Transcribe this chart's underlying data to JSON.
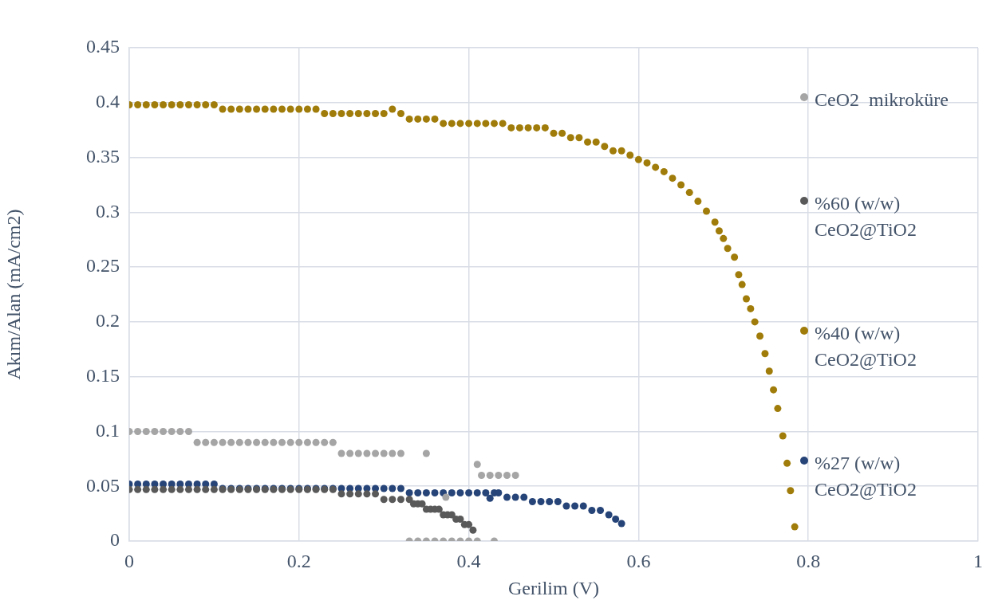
{
  "chart_data": {
    "type": "scatter",
    "xlabel": "Gerilim (V)",
    "ylabel": "Akım/Alan (mA/cm2)",
    "xlim": [
      0,
      1
    ],
    "xticks": [
      0,
      0.2,
      0.4,
      0.6,
      0.8,
      1
    ],
    "ylim": [
      0,
      0.45
    ],
    "yticks": [
      0,
      0.05,
      0.1,
      0.15,
      0.2,
      0.25,
      0.3,
      0.35,
      0.4,
      0.45
    ],
    "grid": true,
    "legend": "right",
    "marker": "circle",
    "series": [
      {
        "name": "CeO2  mikroküre",
        "color": "#a5a5a5",
        "x": [
          0,
          0.01,
          0.02,
          0.03,
          0.04,
          0.05,
          0.06,
          0.07,
          0.08,
          0.09,
          0.1,
          0.11,
          0.12,
          0.13,
          0.14,
          0.15,
          0.16,
          0.17,
          0.18,
          0.19,
          0.2,
          0.21,
          0.22,
          0.23,
          0.24,
          0.25,
          0.26,
          0.27,
          0.28,
          0.29,
          0.3,
          0.31,
          0.32,
          0.35,
          0.41,
          0.415,
          0.425,
          0.435,
          0.445,
          0.455,
          0.373,
          0.33,
          0.34,
          0.35,
          0.36,
          0.37,
          0.38,
          0.39,
          0.4,
          0.41,
          0.43
        ],
        "values": [
          0.1,
          0.1,
          0.1,
          0.1,
          0.1,
          0.1,
          0.1,
          0.1,
          0.09,
          0.09,
          0.09,
          0.09,
          0.09,
          0.09,
          0.09,
          0.09,
          0.09,
          0.09,
          0.09,
          0.09,
          0.09,
          0.09,
          0.09,
          0.09,
          0.09,
          0.08,
          0.08,
          0.08,
          0.08,
          0.08,
          0.08,
          0.08,
          0.08,
          0.08,
          0.07,
          0.06,
          0.06,
          0.06,
          0.06,
          0.06,
          0.04,
          0,
          0,
          0,
          0,
          0,
          0,
          0,
          0,
          0,
          0
        ]
      },
      {
        "name": "%60 (w/w) CeO2@TiO2",
        "color": "#595959",
        "x": [
          0,
          0.01,
          0.02,
          0.03,
          0.04,
          0.05,
          0.06,
          0.07,
          0.08,
          0.09,
          0.1,
          0.11,
          0.12,
          0.13,
          0.14,
          0.15,
          0.16,
          0.17,
          0.18,
          0.19,
          0.2,
          0.21,
          0.22,
          0.23,
          0.24,
          0.25,
          0.26,
          0.27,
          0.28,
          0.29,
          0.3,
          0.31,
          0.32,
          0.33,
          0.335,
          0.34,
          0.345,
          0.35,
          0.355,
          0.36,
          0.365,
          0.37,
          0.375,
          0.38,
          0.385,
          0.39,
          0.395,
          0.4,
          0.405
        ],
        "values": [
          0.047,
          0.047,
          0.047,
          0.047,
          0.047,
          0.047,
          0.047,
          0.047,
          0.047,
          0.047,
          0.047,
          0.047,
          0.047,
          0.047,
          0.047,
          0.047,
          0.047,
          0.047,
          0.047,
          0.047,
          0.047,
          0.047,
          0.047,
          0.047,
          0.047,
          0.043,
          0.043,
          0.043,
          0.043,
          0.043,
          0.038,
          0.038,
          0.038,
          0.038,
          0.034,
          0.034,
          0.034,
          0.029,
          0.029,
          0.029,
          0.029,
          0.024,
          0.024,
          0.024,
          0.02,
          0.02,
          0.015,
          0.015,
          0.01
        ]
      },
      {
        "name": "%40 (w/w) CeO2@TiO2",
        "color": "#a07c0a",
        "x": [
          0,
          0.01,
          0.02,
          0.03,
          0.04,
          0.05,
          0.06,
          0.07,
          0.08,
          0.09,
          0.1,
          0.11,
          0.12,
          0.13,
          0.14,
          0.15,
          0.16,
          0.17,
          0.18,
          0.19,
          0.2,
          0.21,
          0.22,
          0.23,
          0.24,
          0.25,
          0.26,
          0.27,
          0.28,
          0.29,
          0.3,
          0.31,
          0.32,
          0.33,
          0.34,
          0.35,
          0.36,
          0.37,
          0.38,
          0.39,
          0.4,
          0.41,
          0.42,
          0.43,
          0.44,
          0.45,
          0.46,
          0.47,
          0.48,
          0.49,
          0.5,
          0.51,
          0.52,
          0.53,
          0.54,
          0.55,
          0.56,
          0.57,
          0.58,
          0.59,
          0.6,
          0.61,
          0.62,
          0.63,
          0.64,
          0.65,
          0.66,
          0.67,
          0.68,
          0.69,
          0.695,
          0.7,
          0.705,
          0.713,
          0.718,
          0.722,
          0.727,
          0.732,
          0.737,
          0.743,
          0.749,
          0.754,
          0.759,
          0.764,
          0.77,
          0.775,
          0.779,
          0.784
        ],
        "values": [
          0.398,
          0.398,
          0.398,
          0.398,
          0.398,
          0.398,
          0.398,
          0.398,
          0.398,
          0.398,
          0.398,
          0.394,
          0.394,
          0.394,
          0.394,
          0.394,
          0.394,
          0.394,
          0.394,
          0.394,
          0.394,
          0.394,
          0.394,
          0.39,
          0.39,
          0.39,
          0.39,
          0.39,
          0.39,
          0.39,
          0.39,
          0.394,
          0.39,
          0.385,
          0.385,
          0.385,
          0.385,
          0.381,
          0.381,
          0.381,
          0.381,
          0.381,
          0.381,
          0.381,
          0.381,
          0.377,
          0.377,
          0.377,
          0.377,
          0.377,
          0.372,
          0.372,
          0.368,
          0.368,
          0.364,
          0.364,
          0.36,
          0.356,
          0.356,
          0.352,
          0.348,
          0.345,
          0.341,
          0.337,
          0.331,
          0.325,
          0.318,
          0.31,
          0.301,
          0.291,
          0.283,
          0.276,
          0.267,
          0.259,
          0.243,
          0.234,
          0.221,
          0.212,
          0.2,
          0.187,
          0.171,
          0.155,
          0.138,
          0.121,
          0.096,
          0.071,
          0.046,
          0.013
        ]
      },
      {
        "name": "%27 (w/w) CeO2@TiO2",
        "color": "#264478",
        "x": [
          0,
          0.01,
          0.02,
          0.03,
          0.04,
          0.05,
          0.06,
          0.07,
          0.08,
          0.09,
          0.1,
          0.11,
          0.12,
          0.13,
          0.14,
          0.15,
          0.16,
          0.17,
          0.18,
          0.19,
          0.2,
          0.21,
          0.22,
          0.23,
          0.24,
          0.25,
          0.26,
          0.27,
          0.28,
          0.29,
          0.3,
          0.31,
          0.32,
          0.33,
          0.34,
          0.35,
          0.36,
          0.37,
          0.38,
          0.39,
          0.4,
          0.41,
          0.42,
          0.425,
          0.43,
          0.435,
          0.445,
          0.455,
          0.465,
          0.475,
          0.485,
          0.495,
          0.505,
          0.515,
          0.525,
          0.535,
          0.545,
          0.555,
          0.565,
          0.573,
          0.58
        ],
        "values": [
          0.052,
          0.052,
          0.052,
          0.052,
          0.052,
          0.052,
          0.052,
          0.052,
          0.052,
          0.052,
          0.052,
          0.048,
          0.048,
          0.048,
          0.048,
          0.048,
          0.048,
          0.048,
          0.048,
          0.048,
          0.048,
          0.048,
          0.048,
          0.048,
          0.048,
          0.048,
          0.048,
          0.048,
          0.048,
          0.048,
          0.048,
          0.048,
          0.048,
          0.044,
          0.044,
          0.044,
          0.044,
          0.044,
          0.044,
          0.044,
          0.044,
          0.044,
          0.044,
          0.039,
          0.044,
          0.044,
          0.04,
          0.04,
          0.04,
          0.036,
          0.036,
          0.036,
          0.036,
          0.032,
          0.032,
          0.032,
          0.028,
          0.028,
          0.024,
          0.02,
          0.016
        ]
      }
    ]
  }
}
